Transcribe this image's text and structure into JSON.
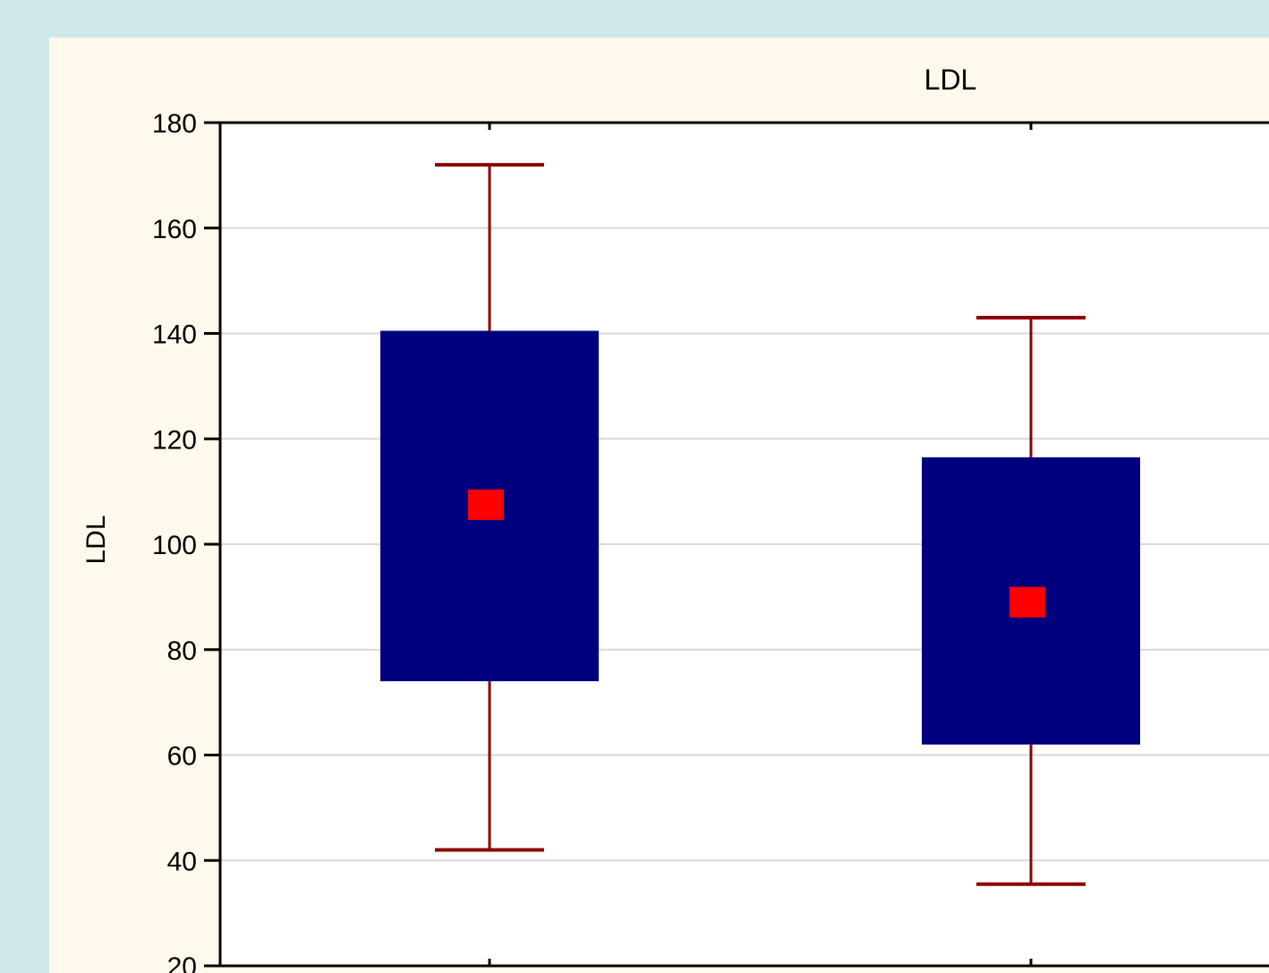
{
  "chart_data": {
    "type": "box",
    "title": "LDL",
    "ylabel": "LDL",
    "xlabel": "",
    "ylim": [
      20,
      180
    ],
    "yticks": [
      20,
      40,
      60,
      80,
      100,
      120,
      140,
      160,
      180
    ],
    "grid": true,
    "colors": {
      "box": "#00007f",
      "whisker": "#8b0000",
      "mean": "#ff0000",
      "grid": "#d9d9d9"
    },
    "boxes": [
      {
        "whisker_low": 42,
        "box_low": 74,
        "mean": 107.5,
        "box_high": 140.5,
        "whisker_high": 172
      },
      {
        "whisker_low": 35.5,
        "box_low": 62,
        "mean": 89,
        "box_high": 116.5,
        "whisker_high": 143
      }
    ]
  }
}
